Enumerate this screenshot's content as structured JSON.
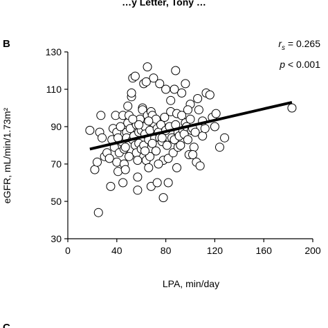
{
  "top_caption": "…y Letter, Tony …",
  "panel_label": "B",
  "next_panel_label": "C",
  "chart_data": {
    "type": "scatter",
    "xlabel": "LPA, min/day",
    "ylabel": "eGFR, mL/min/1.73m²",
    "xlim": [
      0,
      200
    ],
    "ylim": [
      30,
      130
    ],
    "xticks": [
      0,
      40,
      80,
      120,
      160,
      200
    ],
    "yticks": [
      30,
      50,
      70,
      90,
      110,
      130
    ],
    "grid": false,
    "annotations": {
      "rs_symbol": "r",
      "rs_sub": "s",
      "rs_value": " = 0.265",
      "p_text": "p",
      "p_value": " < 0.001"
    },
    "trendline": {
      "x": [
        18,
        183
      ],
      "y": [
        78,
        103
      ]
    },
    "points": [
      [
        18,
        88
      ],
      [
        22,
        67
      ],
      [
        25,
        44
      ],
      [
        24,
        71
      ],
      [
        26,
        87
      ],
      [
        27,
        96
      ],
      [
        28,
        84
      ],
      [
        30,
        74
      ],
      [
        32,
        76
      ],
      [
        34,
        73
      ],
      [
        35,
        58
      ],
      [
        36,
        83
      ],
      [
        37,
        89
      ],
      [
        38,
        79
      ],
      [
        39,
        96
      ],
      [
        40,
        87
      ],
      [
        40,
        71
      ],
      [
        41,
        66
      ],
      [
        42,
        76
      ],
      [
        43,
        90
      ],
      [
        44,
        82
      ],
      [
        45,
        96
      ],
      [
        45,
        60
      ],
      [
        46,
        78
      ],
      [
        46,
        70
      ],
      [
        47,
        67
      ],
      [
        48,
        87
      ],
      [
        48,
        84
      ],
      [
        49,
        92
      ],
      [
        49,
        101
      ],
      [
        50,
        74
      ],
      [
        50,
        96
      ],
      [
        51,
        89
      ],
      [
        52,
        106
      ],
      [
        52,
        108
      ],
      [
        53,
        116
      ],
      [
        53,
        83
      ],
      [
        54,
        85
      ],
      [
        55,
        80
      ],
      [
        55,
        117
      ],
      [
        56,
        76
      ],
      [
        56,
        91
      ],
      [
        57,
        56
      ],
      [
        57,
        63
      ],
      [
        58,
        87
      ],
      [
        58,
        81
      ],
      [
        59,
        94
      ],
      [
        60,
        88
      ],
      [
        60,
        78
      ],
      [
        61,
        100
      ],
      [
        61,
        99
      ],
      [
        62,
        80
      ],
      [
        62,
        113
      ],
      [
        63,
        90
      ],
      [
        63,
        86
      ],
      [
        64,
        72
      ],
      [
        64,
        114
      ],
      [
        65,
        122
      ],
      [
        65,
        96
      ],
      [
        66,
        68
      ],
      [
        66,
        83
      ],
      [
        67,
        88
      ],
      [
        67,
        74
      ],
      [
        68,
        98
      ],
      [
        68,
        58
      ],
      [
        69,
        96
      ],
      [
        70,
        92
      ],
      [
        70,
        116
      ],
      [
        71,
        84
      ],
      [
        72,
        94
      ],
      [
        73,
        60
      ],
      [
        73,
        89
      ],
      [
        74,
        87
      ],
      [
        75,
        84
      ],
      [
        75,
        113
      ],
      [
        76,
        91
      ],
      [
        77,
        82
      ],
      [
        77,
        84
      ],
      [
        78,
        72
      ],
      [
        78,
        52
      ],
      [
        79,
        95
      ],
      [
        80,
        88
      ],
      [
        80,
        110
      ],
      [
        81,
        80
      ],
      [
        82,
        73
      ],
      [
        82,
        60
      ],
      [
        83,
        90
      ],
      [
        84,
        98
      ],
      [
        85,
        84
      ],
      [
        86,
        76
      ],
      [
        87,
        83
      ],
      [
        87,
        110
      ],
      [
        88,
        91
      ],
      [
        88,
        120
      ],
      [
        89,
        97
      ],
      [
        90,
        87
      ],
      [
        90,
        79
      ],
      [
        91,
        85
      ],
      [
        92,
        80
      ],
      [
        93,
        96
      ],
      [
        94,
        88
      ],
      [
        95,
        86
      ],
      [
        96,
        92
      ],
      [
        96,
        113
      ],
      [
        97,
        90
      ],
      [
        98,
        83
      ],
      [
        99,
        75
      ],
      [
        100,
        94
      ],
      [
        100,
        102
      ],
      [
        101,
        88
      ],
      [
        102,
        89
      ],
      [
        103,
        79
      ],
      [
        104,
        87
      ],
      [
        105,
        71
      ],
      [
        106,
        105
      ],
      [
        107,
        99
      ],
      [
        108,
        69
      ],
      [
        110,
        85
      ],
      [
        112,
        89
      ],
      [
        113,
        108
      ],
      [
        116,
        107
      ],
      [
        118,
        95
      ],
      [
        120,
        90
      ],
      [
        121,
        97
      ],
      [
        124,
        79
      ],
      [
        128,
        84
      ],
      [
        183,
        100
      ],
      [
        47,
        79
      ],
      [
        58,
        91
      ],
      [
        63,
        77
      ],
      [
        69,
        81
      ],
      [
        72,
        77
      ],
      [
        84,
        104
      ],
      [
        93,
        108
      ],
      [
        102,
        75
      ],
      [
        110,
        93
      ],
      [
        57,
        72
      ],
      [
        66,
        93
      ],
      [
        74,
        70
      ],
      [
        89,
        68
      ],
      [
        98,
        99
      ],
      [
        41,
        84
      ],
      [
        53,
        94
      ]
    ]
  }
}
